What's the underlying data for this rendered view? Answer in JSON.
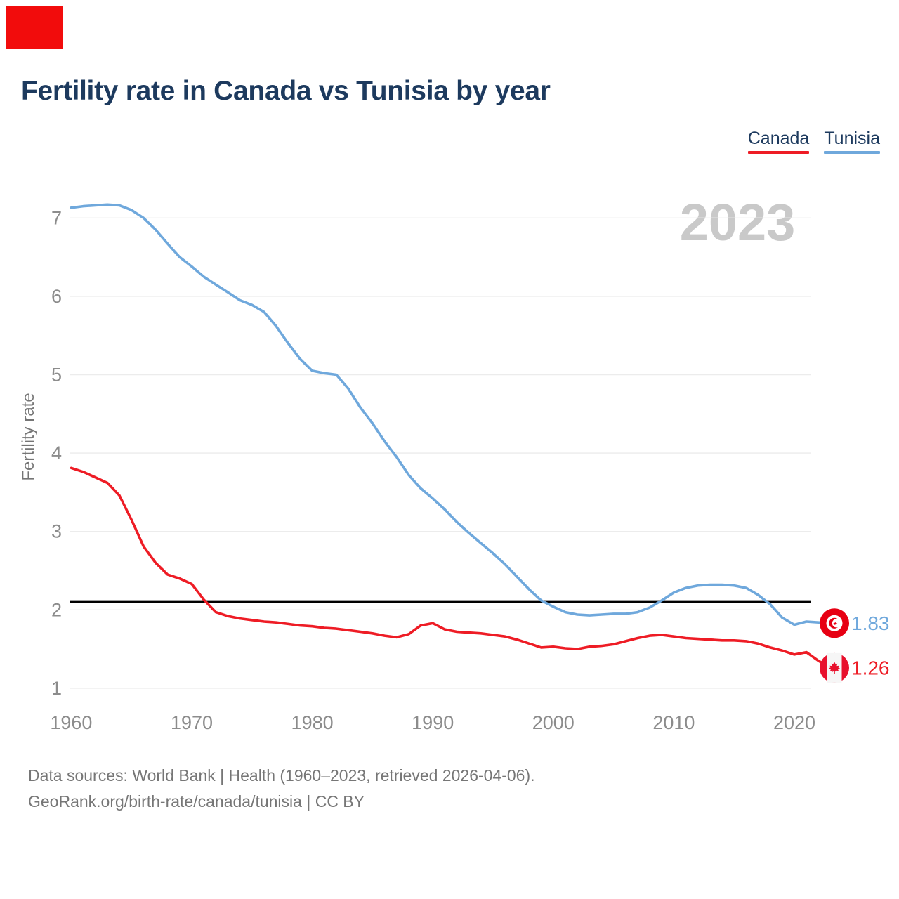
{
  "title": "Fertility rate in Canada vs Tunisia by year",
  "watermark": "2023",
  "legend": {
    "items": [
      {
        "label": "Canada",
        "color": "#ee1c25"
      },
      {
        "label": "Tunisia",
        "color": "#6fa8dc"
      }
    ]
  },
  "y_axis": {
    "label": "Fertility rate",
    "ticks": [
      1,
      2,
      3,
      4,
      5,
      6,
      7
    ]
  },
  "x_axis": {
    "ticks": [
      1960,
      1970,
      1980,
      1990,
      2000,
      2010,
      2020
    ]
  },
  "chart_data": {
    "type": "line",
    "title": "Fertility rate in Canada vs Tunisia by year",
    "xlabel": "",
    "ylabel": "Fertility rate",
    "x_range": [
      1960,
      2023
    ],
    "ylim": [
      1,
      7.4
    ],
    "grid": "horizontal",
    "legend_position": "top-right",
    "reference_line_y": 2.1,
    "years": [
      1960,
      1961,
      1962,
      1963,
      1964,
      1965,
      1966,
      1967,
      1968,
      1969,
      1970,
      1971,
      1972,
      1973,
      1974,
      1975,
      1976,
      1977,
      1978,
      1979,
      1980,
      1981,
      1982,
      1983,
      1984,
      1985,
      1986,
      1987,
      1988,
      1989,
      1990,
      1991,
      1992,
      1993,
      1994,
      1995,
      1996,
      1997,
      1998,
      1999,
      2000,
      2001,
      2002,
      2003,
      2004,
      2005,
      2006,
      2007,
      2008,
      2009,
      2010,
      2011,
      2012,
      2013,
      2014,
      2015,
      2016,
      2017,
      2018,
      2019,
      2020,
      2021,
      2022,
      2023
    ],
    "series": [
      {
        "name": "Tunisia",
        "color": "#6fa8dc",
        "end_label": "1.83",
        "end_value": 1.83,
        "values": [
          7.13,
          7.15,
          7.16,
          7.17,
          7.16,
          7.1,
          7.0,
          6.85,
          6.67,
          6.5,
          6.38,
          6.25,
          6.15,
          6.05,
          5.95,
          5.89,
          5.8,
          5.62,
          5.4,
          5.2,
          5.05,
          5.02,
          5.0,
          4.82,
          4.58,
          4.38,
          4.15,
          3.95,
          3.72,
          3.55,
          3.42,
          3.28,
          3.12,
          2.98,
          2.85,
          2.72,
          2.58,
          2.42,
          2.26,
          2.12,
          2.04,
          1.97,
          1.94,
          1.93,
          1.94,
          1.95,
          1.95,
          1.97,
          2.03,
          2.12,
          2.22,
          2.28,
          2.31,
          2.32,
          2.32,
          2.31,
          2.28,
          2.19,
          2.07,
          1.9,
          1.81,
          1.85,
          1.84,
          1.83
        ]
      },
      {
        "name": "Canada",
        "color": "#ee1c25",
        "end_label": "1.26",
        "end_value": 1.26,
        "values": [
          3.81,
          3.76,
          3.69,
          3.62,
          3.46,
          3.15,
          2.81,
          2.6,
          2.45,
          2.4,
          2.33,
          2.13,
          1.97,
          1.92,
          1.89,
          1.87,
          1.85,
          1.84,
          1.82,
          1.8,
          1.79,
          1.77,
          1.76,
          1.74,
          1.72,
          1.7,
          1.67,
          1.65,
          1.69,
          1.8,
          1.83,
          1.75,
          1.72,
          1.71,
          1.7,
          1.68,
          1.66,
          1.62,
          1.57,
          1.52,
          1.53,
          1.51,
          1.5,
          1.53,
          1.54,
          1.56,
          1.6,
          1.64,
          1.67,
          1.68,
          1.66,
          1.64,
          1.63,
          1.62,
          1.61,
          1.61,
          1.6,
          1.57,
          1.52,
          1.48,
          1.43,
          1.46,
          1.35,
          1.26
        ]
      }
    ]
  },
  "footer": {
    "line1": "Data sources: World Bank | Health (1960–2023, retrieved 2026-04-06).",
    "line2": "GeoRank.org/birth-rate/canada/tunisia | CC BY"
  },
  "colors": {
    "title_text": "#1d3a5e",
    "canada_red": "#ee1c25",
    "tunisia_blue": "#6fa8dc",
    "watermark": "#c9c9c9",
    "gridline": "#ececec",
    "tick_text": "#8c8c8c",
    "axis_title_text": "#757575",
    "footer_text": "#767676",
    "reference_line": "#000000",
    "tunisia_flag_red": "#e70013",
    "canada_flag_red": "#e8112d",
    "annotation_marker": "#f20c0c"
  }
}
